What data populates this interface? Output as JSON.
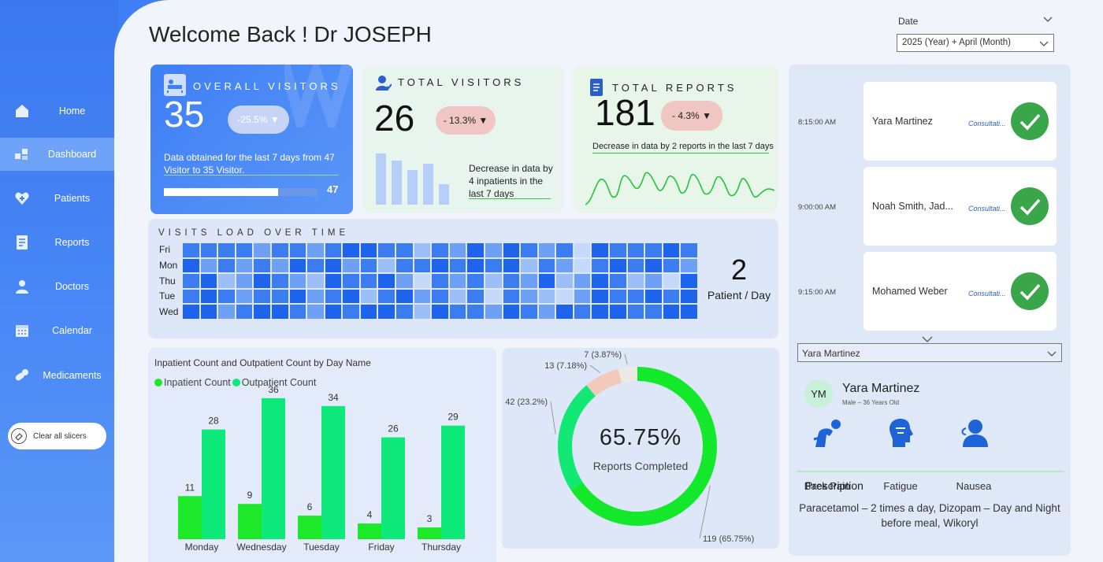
{
  "sidebar": {
    "items": [
      {
        "label": "Home",
        "icon": "home-icon"
      },
      {
        "label": "Dashboard",
        "icon": "dashboard-icon",
        "active": true
      },
      {
        "label": "Patients",
        "icon": "heart-plus-icon"
      },
      {
        "label": "Reports",
        "icon": "report-icon"
      },
      {
        "label": "Doctors",
        "icon": "doctor-icon"
      },
      {
        "label": "Calendar",
        "icon": "calendar-icon"
      },
      {
        "label": "Medicaments",
        "icon": "pills-icon"
      }
    ],
    "clear_label": "Clear all slicers"
  },
  "header": {
    "title": "Welcome Back ! Dr JOSEPH",
    "date_label": "Date",
    "date_value": "2025 (Year) + April (Month)"
  },
  "kpi_overall": {
    "title": "OVERALL VISITORS",
    "value": "35",
    "change": "-25.5% ▼",
    "note": "Data obtained for the last 7 days from 47 Visitor to 35 Visitor.",
    "progress_target": "47",
    "progress_fraction": 0.745
  },
  "kpi_total": {
    "title": "TOTAL VISITORS",
    "value": "26",
    "change": "- 13.3% ▼",
    "note": "Decrease in data by 4 inpatients in the last 7 days"
  },
  "kpi_reports": {
    "title": "TOTAL REPORTS",
    "value": "181",
    "change": "- 4.3% ▼",
    "note": "Decrease in data by 2 reports in the last 7 days"
  },
  "heatmap": {
    "title": "VISITS LOAD OVER TIME",
    "rows": [
      "Fri",
      "Mon",
      "Thu",
      "Tue",
      "Wed"
    ],
    "value": "2",
    "unit": "Patient / Day"
  },
  "chart_data": [
    {
      "type": "bar",
      "title": "Inpatient Count and Outpatient Count by Day Name",
      "categories": [
        "Monday",
        "Wednesday",
        "Tuesday",
        "Friday",
        "Thursday"
      ],
      "series": [
        {
          "name": "Inpatient Count",
          "values": [
            11,
            9,
            6,
            4,
            3
          ],
          "color": "#1ee82a"
        },
        {
          "name": "Outpatient Count",
          "values": [
            28,
            36,
            34,
            26,
            29
          ],
          "color": "#0fe87a"
        }
      ],
      "ylim": [
        0,
        40
      ]
    },
    {
      "type": "pie",
      "center_value": "65.75%",
      "center_label": "Reports Completed",
      "slices": [
        {
          "value": 119,
          "label": "119 (65.75%)",
          "color": "#14e82a"
        },
        {
          "value": 42,
          "label": "42 (23.2%)",
          "color": "#12e874"
        },
        {
          "value": 13,
          "label": "13 (7.18%)",
          "color": "#f2c9bb"
        },
        {
          "value": 7,
          "label": "7 (3.87%)",
          "color": "#ece9e4"
        }
      ]
    }
  ],
  "appointments": [
    {
      "time": "8:15:00 AM",
      "name": "Yara Martinez",
      "type": "Consultati..."
    },
    {
      "time": "9:00:00 AM",
      "name": "Noah Smith, Jad...",
      "type": "Consultati..."
    },
    {
      "time": "9:15:00 AM",
      "name": "Mohamed Weber",
      "type": "Consultati..."
    }
  ],
  "patient": {
    "select_value": "Yara Martinez",
    "initials": "YM",
    "name": "Yara Martinez",
    "info": "Male – 36 Years Old",
    "symptoms": [
      "Back Pain",
      "Fatigue",
      "Nausea"
    ],
    "prescription_title": "Prescription",
    "prescription": "Paracetamol – 2 times a day, Dizopam – Day and Night before meal, Wikoryl"
  }
}
